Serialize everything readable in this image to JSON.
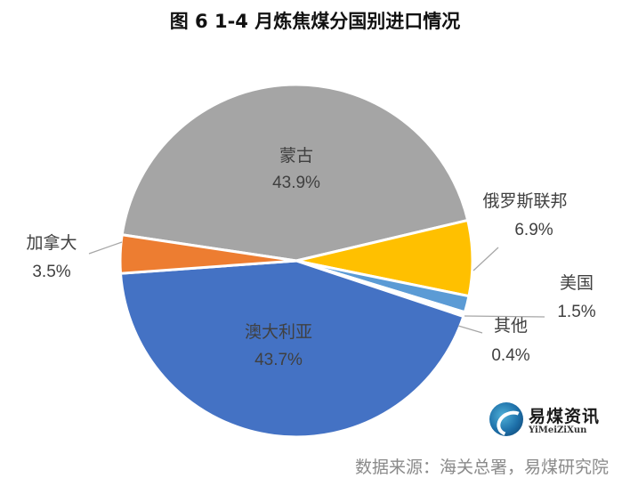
{
  "title": "图 6 1-4 月炼焦煤分国别进口情况",
  "source": "数据来源：海关总署，易煤研究院",
  "logo": {
    "name": "易煤资讯",
    "sub": "YiMeiZiXun",
    "icon": "coal-logo-icon"
  },
  "chart_data": {
    "type": "pie",
    "title": "图 6 1-4 月炼焦煤分国别进口情况",
    "slices": [
      {
        "label": "蒙古",
        "value": 43.9,
        "display": "43.9%",
        "color": "#a5a5a5"
      },
      {
        "label": "俄罗斯联邦",
        "value": 6.9,
        "display": "6.9%",
        "color": "#ffc000"
      },
      {
        "label": "美国",
        "value": 1.5,
        "display": "1.5%",
        "color": "#5b9bd5"
      },
      {
        "label": "其他",
        "value": 0.4,
        "display": "0.4%",
        "color": "#ffffff"
      },
      {
        "label": "澳大利亚",
        "value": 43.7,
        "display": "43.7%",
        "color": "#4472c4"
      },
      {
        "label": "加拿大",
        "value": 3.5,
        "display": "3.5%",
        "color": "#ed7d31"
      }
    ],
    "legend": "none"
  }
}
